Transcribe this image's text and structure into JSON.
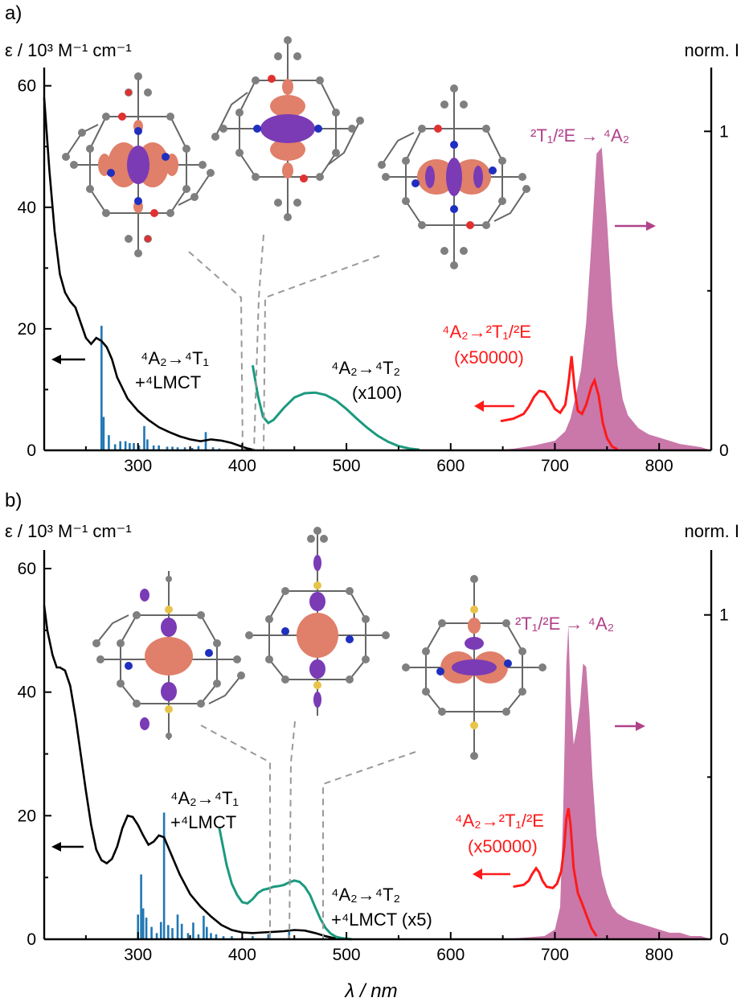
{
  "colors": {
    "absorption": "#000000",
    "tddft_sticks": "#1f77b4",
    "scaled_absorption": "#1b9a7f",
    "emission_fill": "#c0609a",
    "excitation_red": "#ff1a1a",
    "emission_label": "#b0428a",
    "orbital_orange": "#e07f6a",
    "orbital_purple": "#7a3bb5",
    "atom_grey": "#7f7f7f",
    "atom_N": "#1f2fbf",
    "atom_O": "#e03030",
    "atom_S": "#e8c44a"
  },
  "chart_data": [
    {
      "panel_label": "a)",
      "type": "line",
      "xlim": [
        210,
        850
      ],
      "x_ticks": [
        300,
        400,
        500,
        600,
        700,
        800
      ],
      "ylabel_left": "ε / 10³ M⁻¹ cm⁻¹",
      "ylim_left": [
        0,
        63
      ],
      "y_ticks_left": [
        0,
        20,
        40,
        60
      ],
      "ylabel_right": "norm. I",
      "ylim_right": [
        0,
        1.2
      ],
      "y_ticks_right": [
        0,
        1
      ],
      "series": [
        {
          "role": "absorption",
          "x": [
            210,
            215,
            220,
            225,
            230,
            235,
            240,
            245,
            250,
            255,
            260,
            265,
            270,
            275,
            280,
            290,
            300,
            310,
            320,
            330,
            340,
            350,
            360,
            370,
            380,
            390,
            400,
            405,
            410
          ],
          "y": [
            58,
            46,
            36,
            29,
            26,
            24.5,
            23.5,
            21,
            18.5,
            17.5,
            18.5,
            18,
            17,
            15,
            12,
            8.5,
            6.5,
            5,
            3.8,
            3,
            2.3,
            1.8,
            1.5,
            1.8,
            1.6,
            1.2,
            0.6,
            0.3,
            0.1
          ]
        },
        {
          "role": "absorption_x100",
          "x": [
            410,
            415,
            420,
            425,
            430,
            440,
            450,
            460,
            470,
            480,
            490,
            500,
            510,
            520,
            530,
            540,
            550,
            560,
            570
          ],
          "y": [
            14,
            9,
            5.5,
            4.5,
            5,
            7,
            8.7,
            9.4,
            9.5,
            9.1,
            8.2,
            6.8,
            5.2,
            3.7,
            2.4,
            1.4,
            0.7,
            0.3,
            0.1
          ]
        },
        {
          "role": "emission",
          "x": [
            640,
            660,
            680,
            700,
            710,
            715,
            720,
            725,
            730,
            735,
            740,
            745,
            750,
            755,
            760,
            765,
            770,
            780,
            790,
            800,
            810,
            820,
            840,
            850
          ],
          "y": [
            0,
            0.005,
            0.015,
            0.03,
            0.06,
            0.1,
            0.17,
            0.25,
            0.4,
            0.65,
            0.93,
            0.95,
            0.72,
            0.45,
            0.27,
            0.16,
            0.11,
            0.07,
            0.05,
            0.04,
            0.03,
            0.02,
            0.01,
            0
          ]
        },
        {
          "role": "excitation_x50000",
          "x": [
            648,
            660,
            670,
            675,
            680,
            685,
            690,
            695,
            700,
            705,
            710,
            713,
            716,
            719,
            722,
            726,
            730,
            735,
            738,
            742,
            746,
            750,
            755,
            760
          ],
          "y": [
            4.8,
            5.2,
            6,
            7.2,
            8.8,
            9.8,
            9.6,
            8.4,
            6.8,
            6.2,
            7.5,
            11,
            15.5,
            10,
            6.5,
            6,
            7.5,
            10.5,
            11.5,
            9,
            4.5,
            2,
            0.6,
            0.2
          ]
        }
      ],
      "sticks": {
        "x": [
          265,
          267,
          272,
          278,
          283,
          288,
          292,
          296,
          301,
          306,
          309,
          315,
          320,
          328,
          333,
          338,
          345,
          352,
          358,
          365,
          372,
          378,
          385,
          395
        ],
        "y": [
          20.5,
          5.5,
          2.5,
          1,
          1.5,
          1.5,
          1.2,
          1.2,
          0.8,
          4,
          1.8,
          0.8,
          0.8,
          0.6,
          0.6,
          0.5,
          0.5,
          0.4,
          0.7,
          3,
          0.5,
          0.3,
          0.2,
          0.2
        ]
      },
      "annotations": {
        "t1_line1": "⁴A₂→⁴T₁",
        "t1_line2": "+⁴LMCT",
        "t2_line1": "⁴A₂→⁴T₂",
        "t2_line2": "(x100)",
        "red_line1": "⁴A₂→²T₁/²E",
        "red_line2": "(x50000)",
        "emission": "²T₁/²E → ⁴A₂"
      }
    },
    {
      "panel_label": "b)",
      "type": "line",
      "xlim": [
        210,
        850
      ],
      "x_ticks": [
        300,
        400,
        500,
        600,
        700,
        800
      ],
      "xlabel": "λ / nm",
      "ylabel_left": "ε / 10³ M⁻¹ cm⁻¹",
      "ylim_left": [
        0,
        63
      ],
      "y_ticks_left": [
        0,
        20,
        40,
        60
      ],
      "ylabel_right": "norm. I",
      "ylim_right": [
        0,
        1.2
      ],
      "y_ticks_right": [
        0,
        1
      ],
      "series": [
        {
          "role": "absorption",
          "x": [
            210,
            213,
            218,
            222,
            225,
            230,
            235,
            240,
            245,
            250,
            255,
            260,
            265,
            270,
            275,
            280,
            285,
            290,
            295,
            300,
            305,
            310,
            315,
            320,
            325,
            330,
            340,
            350,
            360,
            370,
            380,
            390,
            400,
            410,
            420,
            430,
            440,
            450,
            460,
            470,
            480,
            490
          ],
          "y": [
            54,
            50,
            46,
            44,
            44,
            43.5,
            41,
            36,
            30,
            24,
            18.5,
            14.5,
            12.8,
            12.3,
            13,
            15,
            18,
            20,
            19.8,
            18.5,
            16.8,
            15.3,
            15.8,
            16.8,
            16.5,
            14.5,
            10.5,
            7.3,
            5.3,
            3.7,
            2.3,
            1.5,
            1.1,
            1,
            1.1,
            1.2,
            1.3,
            1.5,
            1.4,
            1,
            0.5,
            0.1
          ]
        },
        {
          "role": "absorption_x5",
          "x": [
            378,
            385,
            390,
            395,
            400,
            405,
            410,
            415,
            420,
            425,
            430,
            435,
            440,
            445,
            450,
            455,
            460,
            465,
            470,
            475,
            480,
            485,
            490,
            495,
            500,
            505
          ],
          "y": [
            18,
            12,
            9,
            7.2,
            6,
            5.8,
            6.5,
            7.5,
            8,
            8.2,
            8.5,
            8.6,
            8.8,
            9.2,
            9.5,
            9.3,
            8.5,
            7.2,
            5.2,
            3.3,
            1.8,
            0.9,
            0.4,
            0.2,
            0.1,
            0
          ]
        },
        {
          "role": "emission",
          "x": [
            650,
            670,
            690,
            700,
            705,
            708,
            711,
            713,
            715,
            718,
            721,
            724,
            727,
            730,
            733,
            736,
            740,
            745,
            750,
            755,
            760,
            770,
            780,
            790,
            800,
            810,
            820,
            830,
            840,
            850
          ],
          "y": [
            0,
            0.005,
            0.01,
            0.03,
            0.1,
            0.4,
            0.85,
            0.97,
            0.75,
            0.6,
            0.65,
            0.72,
            0.85,
            0.84,
            0.7,
            0.5,
            0.32,
            0.2,
            0.14,
            0.1,
            0.08,
            0.06,
            0.05,
            0.04,
            0.03,
            0.02,
            0.02,
            0.01,
            0.01,
            0
          ]
        },
        {
          "role": "excitation_x50000",
          "x": [
            660,
            670,
            675,
            678,
            682,
            685,
            688,
            692,
            698,
            702,
            706,
            709,
            711,
            713,
            715,
            718,
            722,
            726,
            730,
            735,
            740
          ],
          "y": [
            8.5,
            8.8,
            9.5,
            10.5,
            11.5,
            10.8,
            9.5,
            8.5,
            8.3,
            9,
            11,
            15,
            19.5,
            21.2,
            18.5,
            11.5,
            7.5,
            5.8,
            4,
            1.8,
            0.5
          ]
        }
      ],
      "sticks": {
        "x": [
          300,
          303,
          305,
          308,
          313,
          318,
          322,
          325,
          329,
          333,
          338,
          342,
          348,
          353,
          358,
          363,
          366,
          370,
          375,
          382,
          390,
          400,
          410,
          425,
          445
        ],
        "y": [
          4,
          10.5,
          5,
          3.5,
          2,
          1,
          2.8,
          20.5,
          2.3,
          1.8,
          4,
          2.5,
          1,
          2.7,
          0.8,
          3.8,
          2,
          1,
          0.8,
          0.5,
          0.5,
          0.4,
          0.5,
          0.8,
          1.2
        ]
      },
      "annotations": {
        "t1_line1": "⁴A₂→⁴T₁",
        "t1_line2": "+⁴LMCT",
        "t2_line1": "⁴A₂→⁴T₂",
        "t2_line2": "+⁴LMCT (x5)",
        "red_line1": "⁴A₂→²T₁/²E",
        "red_line2": "(x50000)",
        "emission": "²T₁/²E → ⁴A₂"
      }
    }
  ]
}
